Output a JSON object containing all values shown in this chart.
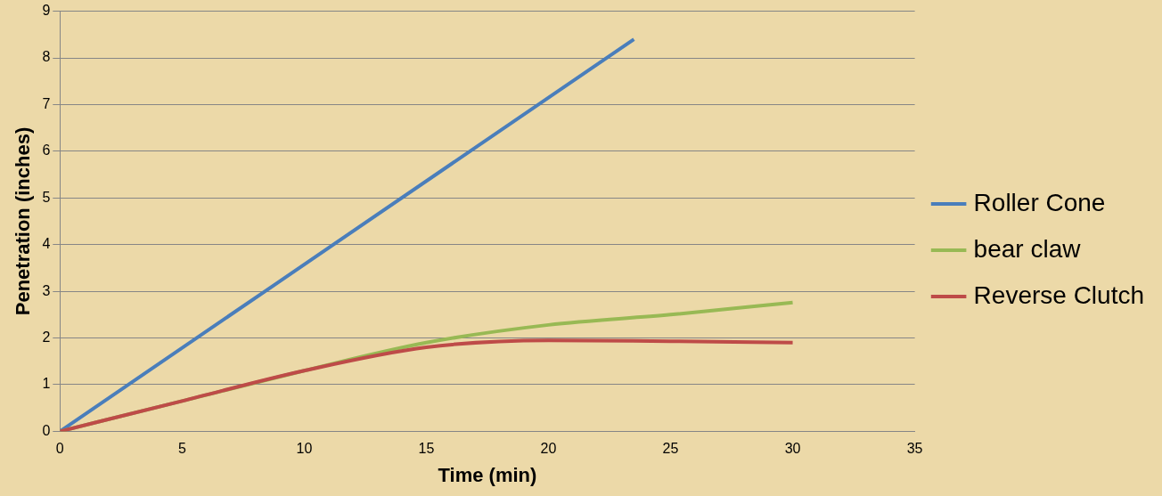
{
  "chart_data": {
    "type": "line",
    "xlabel": "Time (min)",
    "ylabel": "Penetration (inches)",
    "xlim": [
      0,
      35
    ],
    "xticks": [
      0,
      5,
      10,
      15,
      20,
      25,
      30,
      35
    ],
    "ylim": [
      0,
      9
    ],
    "yticks": [
      0,
      1,
      2,
      3,
      4,
      5,
      6,
      7,
      8,
      9
    ],
    "grid": "y",
    "legend": "right",
    "marker": "none",
    "line_style": "solid",
    "series": [
      {
        "name": "Roller Cone",
        "color": "#4a7ebb",
        "x": [
          0,
          23.5
        ],
        "values": [
          0,
          8.4
        ]
      },
      {
        "name": "bear claw",
        "color": "#98b954",
        "x": [
          0,
          5,
          10,
          15,
          20,
          25,
          30
        ],
        "values": [
          0,
          0.65,
          1.3,
          1.9,
          2.28,
          2.5,
          2.76
        ]
      },
      {
        "name": "Reverse Clutch",
        "color": "#be4b48",
        "x": [
          0,
          5,
          10,
          15,
          20,
          25,
          30
        ],
        "values": [
          0,
          0.65,
          1.3,
          1.8,
          1.95,
          1.93,
          1.9
        ]
      }
    ]
  }
}
